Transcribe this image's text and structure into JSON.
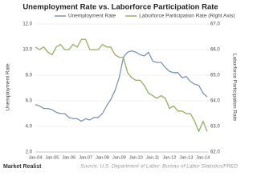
{
  "chart_data": {
    "type": "line",
    "title": "Unemployment Rate vs. Laborforce Participation Rate",
    "y_label": "Unemployment Rate",
    "y2_label": "Laborforce Participation Rate",
    "categories": [
      "Jan-04",
      null,
      null,
      null,
      "Jan-05",
      null,
      null,
      null,
      "Jan-06",
      null,
      null,
      null,
      "Jan-07",
      null,
      null,
      null,
      "Jan-08",
      null,
      null,
      null,
      "Jan-09",
      null,
      null,
      null,
      "Jan-10",
      null,
      null,
      null,
      "Jan-11",
      null,
      null,
      null,
      "Jan-12",
      null,
      null,
      null,
      "Jan-13",
      null,
      null,
      null,
      "Jan-14",
      null
    ],
    "series": [
      {
        "name": "Unemployment Rate",
        "color": "#7f93b5",
        "values": [
          5.7,
          5.6,
          5.4,
          5.4,
          5.3,
          5.1,
          5.0,
          5.0,
          4.7,
          4.6,
          4.6,
          4.4,
          4.6,
          4.5,
          4.7,
          4.7,
          5.0,
          5.6,
          6.1,
          6.8,
          7.8,
          9.4,
          9.8,
          9.9,
          9.8,
          9.6,
          9.5,
          9.8,
          9.1,
          9.0,
          9.0,
          8.6,
          8.3,
          8.2,
          8.2,
          7.8,
          7.9,
          7.5,
          7.3,
          7.2,
          6.6,
          6.3
        ]
      },
      {
        "name": "Laborforce Participation Rate (Right Axis)",
        "color": "#90b062",
        "axis": "y2",
        "values": [
          66.1,
          66.0,
          66.1,
          65.9,
          65.8,
          66.1,
          66.2,
          66.0,
          66.0,
          66.2,
          66.1,
          66.4,
          66.4,
          66.0,
          66.0,
          66.0,
          66.2,
          66.1,
          66.1,
          65.8,
          65.7,
          65.7,
          65.1,
          64.9,
          64.8,
          64.8,
          64.6,
          64.3,
          64.2,
          64.1,
          64.2,
          64.1,
          63.7,
          63.8,
          63.6,
          63.6,
          63.5,
          63.5,
          63.2,
          62.8,
          63.2,
          62.8
        ]
      }
    ],
    "ylim": [
      2,
      12
    ],
    "yticks": [
      {
        "value": 2,
        "label": "2.0"
      },
      {
        "value": 4,
        "label": "4.0"
      },
      {
        "value": 6,
        "label": "6.0"
      },
      {
        "value": 8,
        "label": "8.0"
      },
      {
        "value": 10,
        "label": "10.0"
      },
      {
        "value": 12,
        "label": "12.0"
      }
    ],
    "y2lim": [
      62,
      67
    ],
    "y2ticks": [
      {
        "value": 62,
        "label": "62.0"
      },
      {
        "value": 63,
        "label": "63.0"
      },
      {
        "value": 64,
        "label": "64.0"
      },
      {
        "value": 65,
        "label": "65.0"
      },
      {
        "value": 66,
        "label": "66.0"
      },
      {
        "value": 67,
        "label": "67.0"
      }
    ],
    "grid": true,
    "legend": "top",
    "source": "Source: U.S. Department of Labor: Bureau of Labor Statistics/FRED",
    "brand": "Market Realist"
  }
}
